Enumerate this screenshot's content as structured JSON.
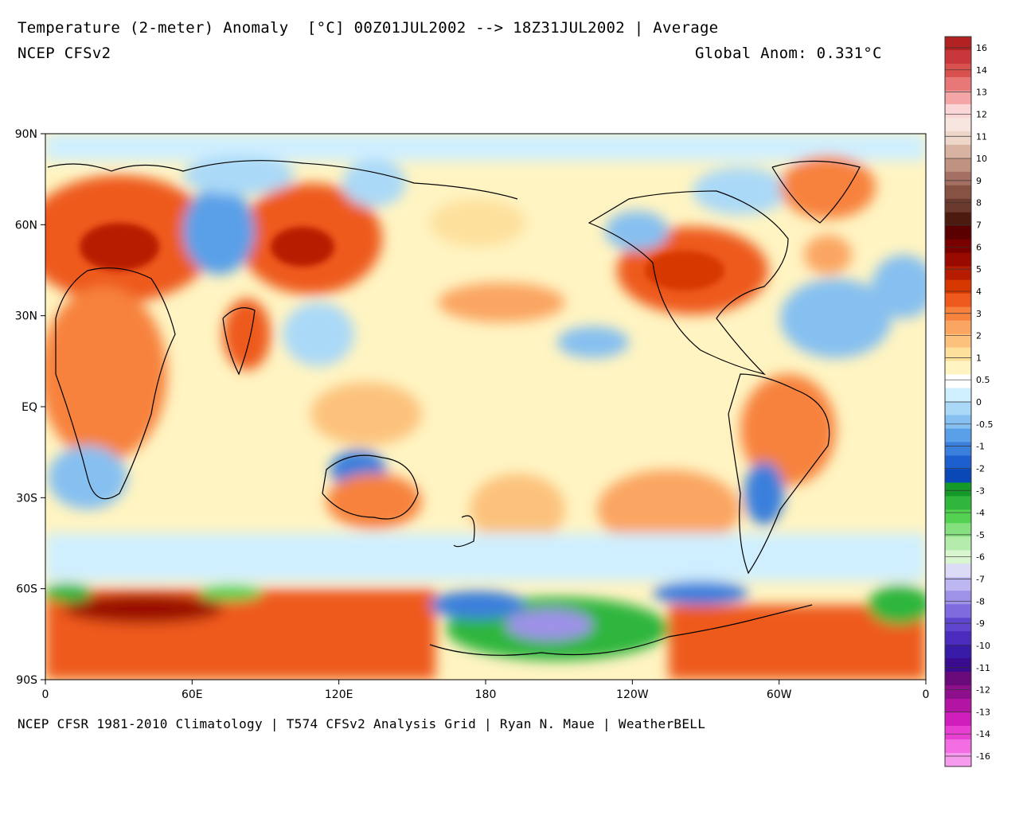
{
  "header": {
    "title": "Temperature (2-meter) Anomaly  [°C] 00Z01JUL2002 --> 18Z31JUL2002 | Average",
    "model": "NCEP CFSv2",
    "global_anom": "Global Anom: 0.331°C"
  },
  "footer": "NCEP CFSR 1981-2010 Climatology | T574 CFSv2 Analysis Grid | Ryan N. Maue | WeatherBELL",
  "axes": {
    "lat_labels": [
      "90N",
      "60N",
      "30N",
      "EQ",
      "30S",
      "60S",
      "90S"
    ],
    "lon_labels": [
      "0",
      "60E",
      "120E",
      "180",
      "120W",
      "60W",
      "0"
    ]
  },
  "legend": {
    "labels": [
      "16",
      "14",
      "13",
      "12",
      "11",
      "10",
      "9",
      "8",
      "7",
      "6",
      "5",
      "4",
      "3",
      "2",
      "1",
      "0.5",
      "0",
      "-0.5",
      "-1",
      "-2",
      "-3",
      "-4",
      "-5",
      "-6",
      "-7",
      "-8",
      "-9",
      "-10",
      "-11",
      "-12",
      "-13",
      "-14",
      "-16"
    ],
    "colors": [
      "#b22222",
      "#c8373a",
      "#d9514f",
      "#e87878",
      "#f4a6a6",
      "#fbd6d6",
      "#f7e6df",
      "#eed6c8",
      "#d8b3a2",
      "#bf9282",
      "#a37063",
      "#865244",
      "#6b3a2e",
      "#4d1a10",
      "#5a0000",
      "#7a0000",
      "#990b00",
      "#b81c00",
      "#d63800",
      "#ee5a1e",
      "#f7823e",
      "#fba562",
      "#fcc27d",
      "#fde09c",
      "#fff4c2",
      "#ffffff",
      "#cfefff",
      "#aad9f7",
      "#86c0f0",
      "#5aa0e8",
      "#3b7fdc",
      "#1e5fcf",
      "#0a48b8",
      "#159a2a",
      "#2fb63c",
      "#53d151",
      "#86e07f",
      "#b4ecab",
      "#d8f5d0",
      "#dcdcf7",
      "#bdb7f1",
      "#9e91e8",
      "#7f6bde",
      "#6046cf",
      "#4a2bbd",
      "#371aa6",
      "#3a0a8f",
      "#6a0a7a",
      "#8e0f8c",
      "#b314a4",
      "#d01ebd",
      "#e740d2",
      "#f26ee2",
      "#f79bee"
    ]
  },
  "map": {
    "lat_ticks": [
      90,
      60,
      30,
      0,
      -30,
      -60,
      -90
    ],
    "lon_ticks": [
      0,
      60,
      120,
      180,
      240,
      300,
      360
    ]
  }
}
